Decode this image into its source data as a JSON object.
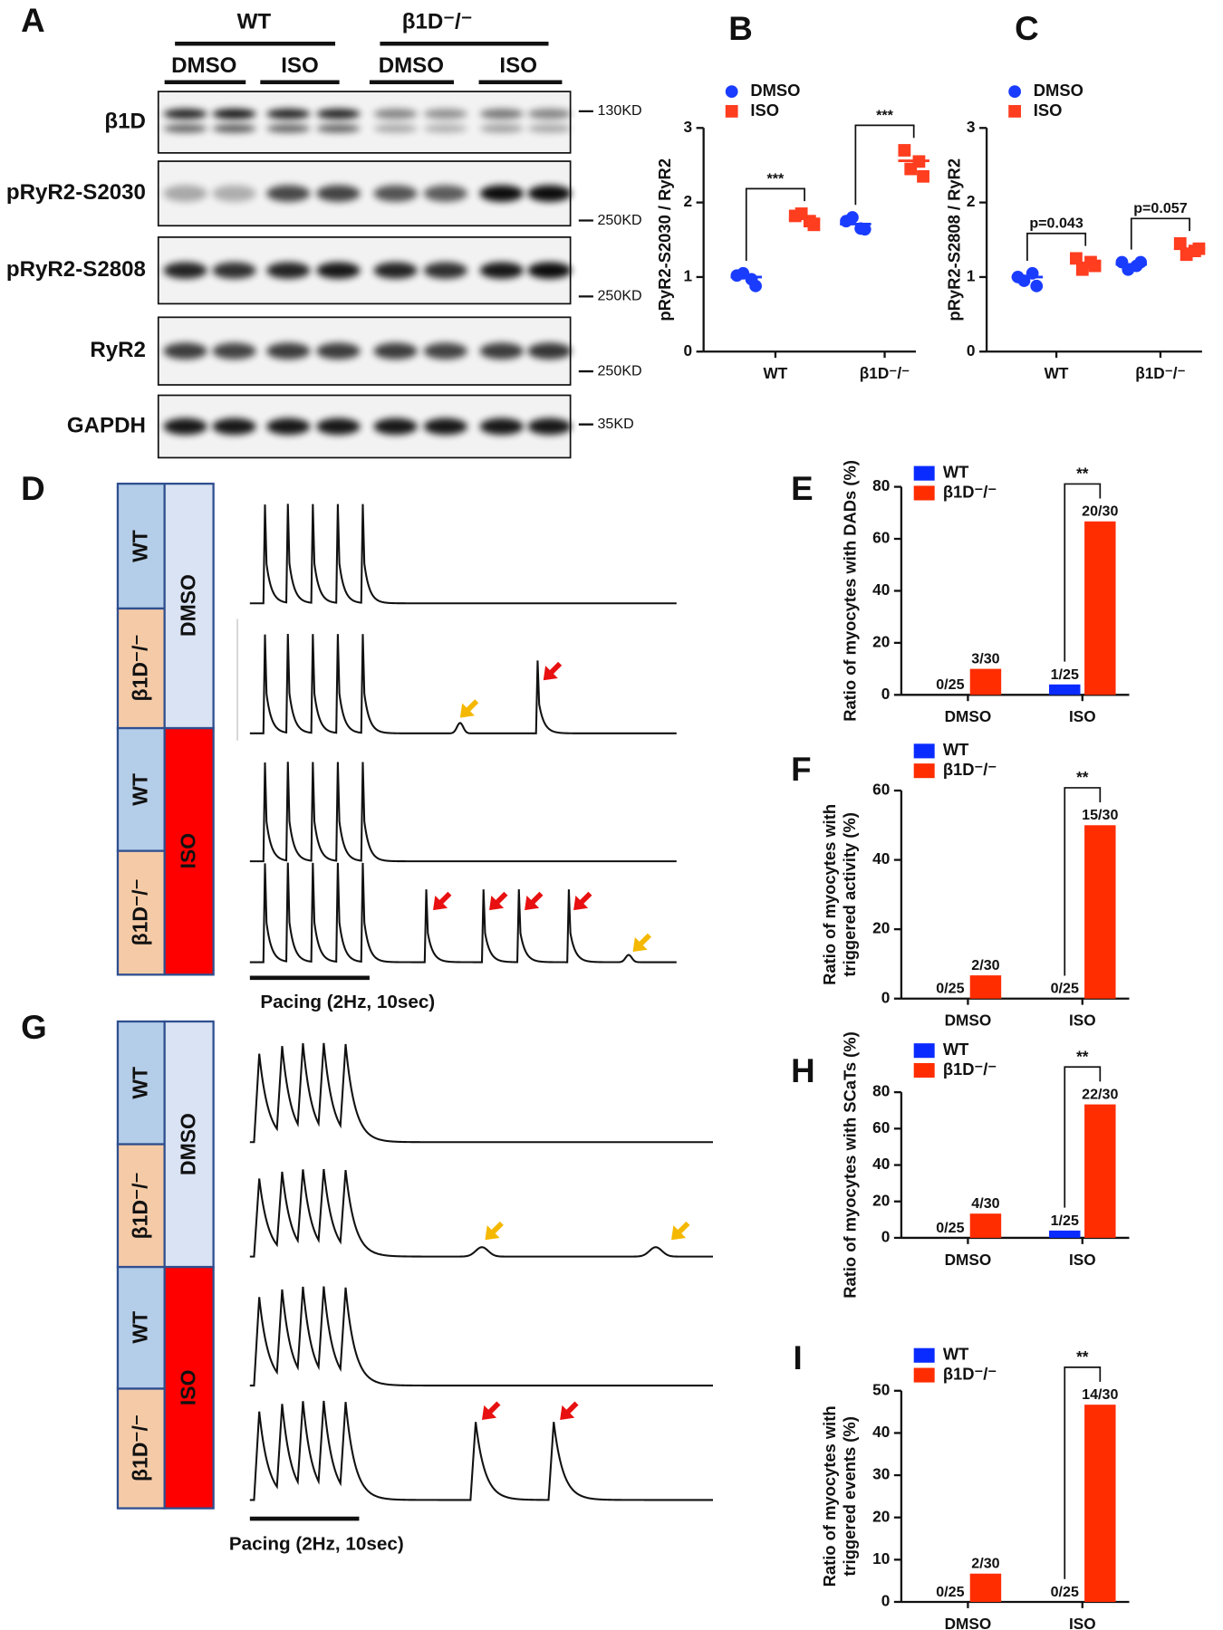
{
  "panel_labels": [
    "A",
    "B",
    "C",
    "D",
    "E",
    "F",
    "G",
    "H",
    "I"
  ],
  "blot": {
    "groups": [
      "WT",
      "β1D⁻/⁻"
    ],
    "treatments": [
      "DMSO",
      "ISO",
      "DMSO",
      "ISO"
    ],
    "rows": [
      "β1D",
      "pRyR2-S2030",
      "pRyR2-S2808",
      "RyR2",
      "GAPDH"
    ],
    "markers": [
      "130KD",
      "250KD",
      "250KD",
      "250KD",
      "35KD"
    ]
  },
  "ap_panel": {
    "genotypes": [
      "WT",
      "β1D⁻/⁻",
      "WT",
      "β1D⁻/⁻"
    ],
    "treatments": [
      "DMSO",
      "ISO"
    ],
    "pacing": "Pacing (2Hz, 10sec)"
  },
  "calcium_panel": {
    "genotypes": [
      "WT",
      "β1D⁻/⁻",
      "WT",
      "β1D⁻/⁻"
    ],
    "treatments": [
      "DMSO",
      "ISO"
    ],
    "pacing": "Pacing (2Hz, 10sec)"
  },
  "chart_data": [
    {
      "type": "dot",
      "ylabel": [
        "pRyR2-S2030 / RyR2"
      ],
      "categories": [
        "WT",
        "β1D⁻/⁻"
      ],
      "series": [
        {
          "name": "DMSO",
          "color": "#1a3cff",
          "marker": "circle",
          "values": [
            [
              1.02,
              0.97,
              1.05,
              0.88
            ],
            [
              1.75,
              1.65,
              1.8,
              1.64
            ]
          ],
          "means": [
            1.0,
            1.71
          ]
        },
        {
          "name": "ISO",
          "color": "#ff3d1f",
          "marker": "square",
          "values": [
            [
              1.82,
              1.75,
              1.85,
              1.7
            ],
            [
              2.7,
              2.55,
              2.45,
              2.35
            ]
          ],
          "means": [
            1.78,
            2.56
          ]
        }
      ],
      "ylim": [
        0,
        3
      ],
      "yticks": [
        0,
        1,
        2,
        3
      ],
      "annotations": [
        "***",
        "***"
      ]
    },
    {
      "type": "dot",
      "ylabel": [
        "pRyR2-S2808 / RyR2"
      ],
      "categories": [
        "WT",
        "β1D⁻/⁻"
      ],
      "series": [
        {
          "name": "DMSO",
          "color": "#1a3cff",
          "marker": "circle",
          "values": [
            [
              1.0,
              1.05,
              0.95,
              0.88
            ],
            [
              1.2,
              1.15,
              1.1,
              1.2
            ]
          ],
          "means": [
            1.0,
            1.17
          ]
        },
        {
          "name": "ISO",
          "color": "#ff3d1f",
          "marker": "square",
          "values": [
            [
              1.25,
              1.2,
              1.1,
              1.15
            ],
            [
              1.45,
              1.35,
              1.3,
              1.38
            ]
          ],
          "means": [
            1.19,
            1.38
          ]
        }
      ],
      "ylim": [
        0,
        3
      ],
      "yticks": [
        0,
        1,
        2,
        3
      ],
      "annotations": [
        "p=0.043",
        "p=0.057"
      ]
    },
    {
      "type": "bar",
      "ylabel": [
        "Ratio of myocytes with DADs (%)"
      ],
      "categories": [
        "DMSO",
        "ISO"
      ],
      "series": [
        {
          "name": "WT",
          "color": "#0a2bff",
          "values": [
            0,
            4
          ],
          "value_labels": [
            "0/25",
            "1/25"
          ]
        },
        {
          "name": "β1D⁻/⁻",
          "color": "#ff2d00",
          "values": [
            10,
            66.7
          ],
          "value_labels": [
            "3/30",
            "20/30"
          ]
        }
      ],
      "ylim": [
        0,
        80
      ],
      "yticks": [
        0,
        20,
        40,
        60,
        80
      ],
      "annotations": [
        "**"
      ]
    },
    {
      "type": "bar",
      "ylabel": [
        "Ratio of myocytes with",
        "triggered activity (%)"
      ],
      "categories": [
        "DMSO",
        "ISO"
      ],
      "series": [
        {
          "name": "WT",
          "color": "#0a2bff",
          "values": [
            0,
            0
          ],
          "value_labels": [
            "0/25",
            "0/25"
          ]
        },
        {
          "name": "β1D⁻/⁻",
          "color": "#ff2d00",
          "values": [
            6.7,
            50
          ],
          "value_labels": [
            "2/30",
            "15/30"
          ]
        }
      ],
      "ylim": [
        0,
        60
      ],
      "yticks": [
        0,
        20,
        40,
        60
      ],
      "annotations": [
        "**"
      ]
    },
    {
      "type": "bar",
      "ylabel": [
        "Ratio of myocytes with SCaTs (%)"
      ],
      "categories": [
        "DMSO",
        "ISO"
      ],
      "series": [
        {
          "name": "WT",
          "color": "#0a2bff",
          "values": [
            0,
            4
          ],
          "value_labels": [
            "0/25",
            "1/25"
          ]
        },
        {
          "name": "β1D⁻/⁻",
          "color": "#ff2d00",
          "values": [
            13.3,
            73.3
          ],
          "value_labels": [
            "4/30",
            "22/30"
          ]
        }
      ],
      "ylim": [
        0,
        80
      ],
      "yticks": [
        0,
        20,
        40,
        60,
        80
      ],
      "annotations": [
        "**"
      ]
    },
    {
      "type": "bar",
      "ylabel": [
        "Ratio of myocytes with",
        "triggered events (%)"
      ],
      "categories": [
        "DMSO",
        "ISO"
      ],
      "series": [
        {
          "name": "WT",
          "color": "#0a2bff",
          "values": [
            0,
            0
          ],
          "value_labels": [
            "0/25",
            "0/25"
          ]
        },
        {
          "name": "β1D⁻/⁻",
          "color": "#ff2d00",
          "values": [
            6.7,
            46.7
          ],
          "value_labels": [
            "2/30",
            "14/30"
          ]
        }
      ],
      "ylim": [
        0,
        50
      ],
      "yticks": [
        0,
        10,
        20,
        30,
        40,
        50
      ],
      "annotations": [
        "**"
      ]
    }
  ]
}
